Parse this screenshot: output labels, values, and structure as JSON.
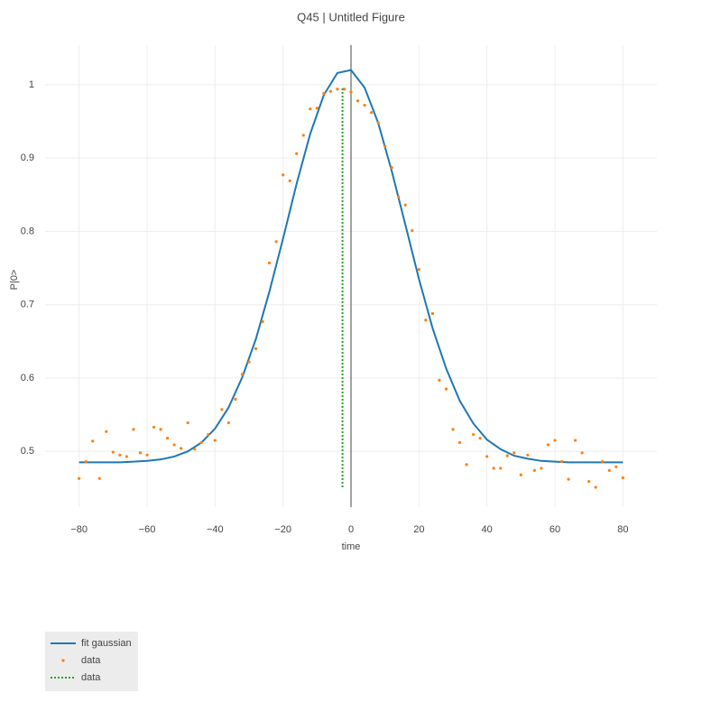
{
  "chart_data": {
    "type": "line",
    "title": "Q45 | Untitled Figure",
    "x_label": "time",
    "y_label": "P|0>",
    "xlim": [
      -90,
      90
    ],
    "ylim": [
      0.424,
      1.054
    ],
    "xticks": [
      {
        "value": -80,
        "label": "−80"
      },
      {
        "value": -60,
        "label": "−60"
      },
      {
        "value": -40,
        "label": "−40"
      },
      {
        "value": -20,
        "label": "−20"
      },
      0,
      20,
      40,
      60,
      80
    ],
    "yticks": [
      0.5,
      0.6,
      0.7,
      0.8,
      0.9,
      1
    ],
    "grid": true,
    "x_zeroline": true,
    "legend": "bottom-left",
    "series": [
      {
        "name": "fit gaussian",
        "color": "#1f77b4",
        "mode": "lines",
        "x": [
          -80,
          -76,
          -72,
          -68,
          -64,
          -60,
          -56,
          -52,
          -48,
          -44,
          -40,
          -36,
          -32,
          -28,
          -24,
          -20,
          -16,
          -12,
          -8,
          -4,
          0,
          4,
          8,
          12,
          16,
          20,
          24,
          28,
          32,
          36,
          40,
          44,
          48,
          52,
          56,
          60,
          64,
          68,
          72,
          76,
          80
        ],
        "values": [
          0.485,
          0.485,
          0.485,
          0.485,
          0.486,
          0.487,
          0.489,
          0.493,
          0.5,
          0.512,
          0.531,
          0.56,
          0.601,
          0.653,
          0.718,
          0.79,
          0.865,
          0.933,
          0.986,
          1.016,
          1.02,
          0.996,
          0.948,
          0.882,
          0.809,
          0.735,
          0.668,
          0.613,
          0.569,
          0.538,
          0.516,
          0.503,
          0.494,
          0.49,
          0.487,
          0.486,
          0.485,
          0.485,
          0.485,
          0.485,
          0.485
        ]
      },
      {
        "name": "data",
        "color": "#ff7f0e",
        "mode": "markers",
        "x": [
          -80,
          -78,
          -76,
          -74,
          -72,
          -70,
          -68,
          -66,
          -64,
          -62,
          -60,
          -58,
          -56,
          -54,
          -52,
          -50,
          -48,
          -46,
          -44,
          -42,
          -40,
          -38,
          -36,
          -34,
          -32,
          -30,
          -28,
          -26,
          -24,
          -22,
          -20,
          -18,
          -16,
          -14,
          -12,
          -10,
          -8,
          -6,
          -4,
          -2,
          0,
          2,
          4,
          6,
          8,
          10,
          12,
          14,
          16,
          18,
          20,
          22,
          24,
          26,
          28,
          30,
          32,
          34,
          36,
          38,
          40,
          42,
          44,
          46,
          48,
          50,
          52,
          54,
          56,
          58,
          60,
          62,
          64,
          66,
          68,
          70,
          72,
          74,
          76,
          78,
          80
        ],
        "values": [
          0.463,
          0.486,
          0.514,
          0.463,
          0.527,
          0.499,
          0.495,
          0.493,
          0.53,
          0.498,
          0.495,
          0.533,
          0.53,
          0.518,
          0.509,
          0.504,
          0.539,
          0.503,
          0.512,
          0.523,
          0.515,
          0.557,
          0.539,
          0.571,
          0.605,
          0.622,
          0.64,
          0.677,
          0.757,
          0.786,
          0.877,
          0.869,
          0.906,
          0.931,
          0.967,
          0.968,
          0.988,
          0.991,
          0.994,
          0.994,
          0.99,
          0.978,
          0.972,
          0.962,
          0.948,
          0.916,
          0.887,
          0.847,
          0.836,
          0.801,
          0.748,
          0.679,
          0.688,
          0.597,
          0.585,
          0.53,
          0.512,
          0.482,
          0.523,
          0.518,
          0.493,
          0.477,
          0.477,
          0.494,
          0.498,
          0.468,
          0.495,
          0.474,
          0.477,
          0.509,
          0.515,
          0.486,
          0.462,
          0.515,
          0.498,
          0.459,
          0.451,
          0.486,
          0.474,
          0.479,
          0.464
        ]
      },
      {
        "name": "data",
        "color": "#2ca02c",
        "mode": "lines",
        "dash": "dot",
        "x": [
          -2.5,
          -2.5
        ],
        "values": [
          0.451,
          0.997
        ]
      }
    ]
  }
}
